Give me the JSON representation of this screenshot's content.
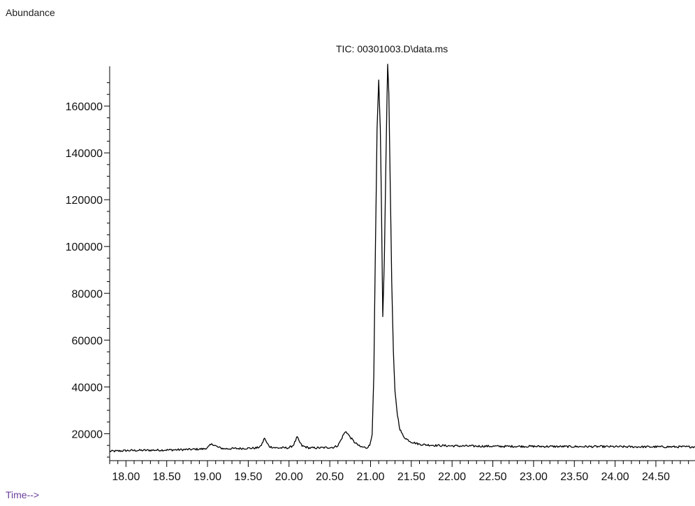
{
  "chart_data": {
    "type": "line",
    "title": "TIC: 00301003.D\\data.ms",
    "ylabel": "Abundance",
    "xlabel": "Time-->",
    "xlim": [
      17.8,
      24.98
    ],
    "ylim": [
      8500,
      177000
    ],
    "yticks": [
      20000,
      40000,
      60000,
      80000,
      100000,
      120000,
      140000,
      160000
    ],
    "ytick_labels": [
      "20000",
      "40000",
      "60000",
      "80000",
      "100000",
      "120000",
      "140000",
      "160000"
    ],
    "xticks": [
      18.0,
      18.5,
      19.0,
      19.5,
      20.0,
      20.5,
      21.0,
      21.5,
      22.0,
      22.5,
      23.0,
      23.5,
      24.0,
      24.5
    ],
    "xtick_labels": [
      "18.00",
      "18.50",
      "19.00",
      "19.50",
      "20.00",
      "20.50",
      "21.00",
      "21.50",
      "22.00",
      "22.50",
      "23.00",
      "23.50",
      "24.00",
      "24.50"
    ],
    "grid": false,
    "legend": "none",
    "line_color": "#000000",
    "series": [
      {
        "x": [
          17.8,
          17.9,
          18.0,
          18.2,
          18.4,
          18.6,
          18.8,
          18.95,
          19.0,
          19.03,
          19.06,
          19.09,
          19.13,
          19.2,
          19.4,
          19.6,
          19.65,
          19.68,
          19.7,
          19.72,
          19.76,
          19.85,
          20.0,
          20.05,
          20.08,
          20.1,
          20.12,
          20.16,
          20.25,
          20.4,
          20.55,
          20.6,
          20.64,
          20.67,
          20.7,
          20.74,
          20.8,
          20.87,
          20.95,
          20.99,
          21.02,
          21.04,
          21.06,
          21.08,
          21.1,
          21.12,
          21.135,
          21.15,
          21.17,
          21.19,
          21.21,
          21.225,
          21.24,
          21.26,
          21.28,
          21.3,
          21.33,
          21.36,
          21.4,
          21.45,
          21.5,
          21.55,
          21.6,
          21.7,
          21.8,
          22.0,
          22.3,
          22.6,
          23.0,
          23.4,
          23.8,
          24.2,
          24.6,
          24.98
        ],
        "y": [
          12500,
          12600,
          12800,
          12900,
          13000,
          13100,
          13300,
          13500,
          14000,
          15000,
          15600,
          15000,
          14200,
          13600,
          13700,
          13900,
          14500,
          16500,
          18300,
          16500,
          14500,
          13900,
          14000,
          15000,
          17000,
          18600,
          17000,
          14800,
          13900,
          14000,
          14200,
          15000,
          17500,
          19800,
          21000,
          19000,
          16500,
          14500,
          14000,
          15000,
          20000,
          45000,
          100000,
          150000,
          171000,
          150000,
          115000,
          70000,
          95000,
          140000,
          178000,
          165000,
          130000,
          85000,
          55000,
          38000,
          28000,
          22000,
          19000,
          17500,
          16500,
          16000,
          15500,
          15200,
          15000,
          14800,
          14700,
          14600,
          14600,
          14500,
          14500,
          14400,
          14400,
          14400
        ]
      }
    ]
  }
}
